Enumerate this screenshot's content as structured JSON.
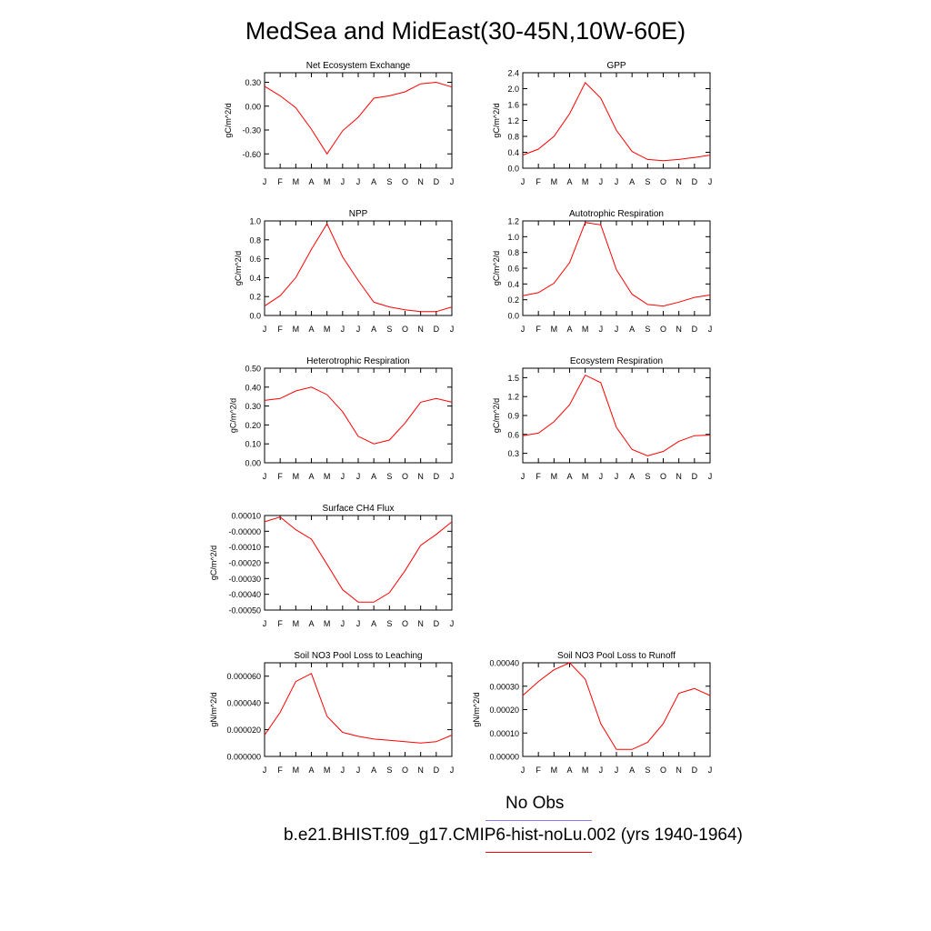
{
  "title": "MedSea and MidEast(30-45N,10W-60E)",
  "legend": {
    "obs_label": "No Obs",
    "obs_color": "#7f7fe6",
    "model_label": "b.e21.BHIST.f09_g17.CMIP6-hist-noLu.002 (yrs 1940-1964)",
    "model_color": "#ff0000"
  },
  "chart_data": [
    {
      "type": "line",
      "title": "Net Ecosystem Exchange",
      "ylabel": "gC/m^2/d",
      "categories": [
        "J",
        "F",
        "M",
        "A",
        "M",
        "J",
        "J",
        "A",
        "S",
        "O",
        "N",
        "D",
        "J"
      ],
      "ylim": [
        -0.78,
        0.42
      ],
      "yticks": [
        -0.6,
        -0.3,
        0.0,
        0.3
      ],
      "ytick_labels": [
        "-0.60",
        "-0.30",
        "0.00",
        "0.30"
      ],
      "series": [
        {
          "values": [
            0.25,
            0.13,
            -0.02,
            -0.29,
            -0.6,
            -0.31,
            -0.14,
            0.1,
            0.13,
            0.18,
            0.28,
            0.3,
            0.24
          ]
        }
      ]
    },
    {
      "type": "line",
      "title": "GPP",
      "ylabel": "gC/m^2/d",
      "categories": [
        "J",
        "F",
        "M",
        "A",
        "M",
        "J",
        "J",
        "A",
        "S",
        "O",
        "N",
        "D",
        "J"
      ],
      "ylim": [
        0.0,
        2.4
      ],
      "yticks": [
        0.0,
        0.4,
        0.8,
        1.2,
        1.6,
        2.0,
        2.4
      ],
      "ytick_labels": [
        "0.0",
        "0.4",
        "0.8",
        "1.2",
        "1.6",
        "2.0",
        "2.4"
      ],
      "series": [
        {
          "values": [
            0.33,
            0.48,
            0.8,
            1.37,
            2.15,
            1.76,
            0.95,
            0.42,
            0.22,
            0.19,
            0.22,
            0.27,
            0.33
          ]
        }
      ]
    },
    {
      "type": "line",
      "title": "NPP",
      "ylabel": "gC/m^2/d",
      "categories": [
        "J",
        "F",
        "M",
        "A",
        "M",
        "J",
        "J",
        "A",
        "S",
        "O",
        "N",
        "D",
        "J"
      ],
      "ylim": [
        0.0,
        1.0
      ],
      "yticks": [
        0.0,
        0.2,
        0.4,
        0.6,
        0.8,
        1.0
      ],
      "ytick_labels": [
        "0.0",
        "0.2",
        "0.4",
        "0.6",
        "0.8",
        "1.0"
      ],
      "series": [
        {
          "values": [
            0.1,
            0.21,
            0.4,
            0.7,
            0.97,
            0.62,
            0.37,
            0.14,
            0.09,
            0.06,
            0.04,
            0.04,
            0.09
          ]
        }
      ]
    },
    {
      "type": "line",
      "title": "Autotrophic Respiration",
      "ylabel": "gC/m^2/d",
      "categories": [
        "J",
        "F",
        "M",
        "A",
        "M",
        "J",
        "J",
        "A",
        "S",
        "O",
        "N",
        "D",
        "J"
      ],
      "ylim": [
        0.0,
        1.2
      ],
      "yticks": [
        0.0,
        0.2,
        0.4,
        0.6,
        0.8,
        1.0,
        1.2
      ],
      "ytick_labels": [
        "0.0",
        "0.2",
        "0.4",
        "0.6",
        "0.8",
        "1.0",
        "1.2"
      ],
      "series": [
        {
          "values": [
            0.25,
            0.29,
            0.41,
            0.67,
            1.18,
            1.15,
            0.58,
            0.27,
            0.14,
            0.12,
            0.17,
            0.23,
            0.26
          ]
        }
      ]
    },
    {
      "type": "line",
      "title": "Heterotrophic Respiration",
      "ylabel": "gC/m^2/d",
      "categories": [
        "J",
        "F",
        "M",
        "A",
        "M",
        "J",
        "J",
        "A",
        "S",
        "O",
        "N",
        "D",
        "J"
      ],
      "ylim": [
        0.0,
        0.5
      ],
      "yticks": [
        0.0,
        0.1,
        0.2,
        0.3,
        0.4,
        0.5
      ],
      "ytick_labels": [
        "0.00",
        "0.10",
        "0.20",
        "0.30",
        "0.40",
        "0.50"
      ],
      "series": [
        {
          "values": [
            0.33,
            0.34,
            0.38,
            0.4,
            0.36,
            0.27,
            0.14,
            0.1,
            0.12,
            0.21,
            0.32,
            0.34,
            0.32
          ]
        }
      ]
    },
    {
      "type": "line",
      "title": "Ecosystem Respiration",
      "ylabel": "gC/m^2/d",
      "categories": [
        "J",
        "F",
        "M",
        "A",
        "M",
        "J",
        "J",
        "A",
        "S",
        "O",
        "N",
        "D",
        "J"
      ],
      "ylim": [
        0.15,
        1.65
      ],
      "yticks": [
        0.3,
        0.6,
        0.9,
        1.2,
        1.5
      ],
      "ytick_labels": [
        "0.3",
        "0.6",
        "0.9",
        "1.2",
        "1.5"
      ],
      "series": [
        {
          "values": [
            0.58,
            0.62,
            0.8,
            1.07,
            1.54,
            1.42,
            0.71,
            0.36,
            0.26,
            0.33,
            0.49,
            0.58,
            0.59
          ]
        }
      ]
    },
    {
      "type": "line",
      "title": "Surface CH4 Flux",
      "ylabel": "gC/m^2/d",
      "categories": [
        "J",
        "F",
        "M",
        "A",
        "M",
        "J",
        "J",
        "A",
        "S",
        "O",
        "N",
        "D",
        "J"
      ],
      "ylim": [
        -0.0005,
        0.0001
      ],
      "yticks": [
        -0.0005,
        -0.0004,
        -0.0003,
        -0.0002,
        -0.0001,
        0.0,
        0.0001
      ],
      "ytick_labels": [
        "-0.00050",
        "-0.00040",
        "-0.00030",
        "-0.00020",
        "-0.00010",
        "-0.00000",
        "0.00010"
      ],
      "series": [
        {
          "values": [
            6e-05,
            9e-05,
            1e-05,
            -5e-05,
            -0.00021,
            -0.00037,
            -0.00045,
            -0.00045,
            -0.00039,
            -0.00025,
            -9e-05,
            -2e-05,
            6e-05
          ]
        }
      ]
    },
    {
      "type": "line",
      "title": "Soil NO3 Pool Loss to Leaching",
      "ylabel": "gN/m^2/d",
      "categories": [
        "J",
        "F",
        "M",
        "A",
        "M",
        "J",
        "J",
        "A",
        "S",
        "O",
        "N",
        "D",
        "J"
      ],
      "ylim": [
        0.0,
        7e-05
      ],
      "yticks": [
        0.0,
        2e-05,
        4e-05,
        6e-05
      ],
      "ytick_labels": [
        "0.000000",
        "0.000020",
        "0.000040",
        "0.000060"
      ],
      "series": [
        {
          "values": [
            1.6e-05,
            3.3e-05,
            5.6e-05,
            6.2e-05,
            3e-05,
            1.8e-05,
            1.5e-05,
            1.3e-05,
            1.2e-05,
            1.1e-05,
            1e-05,
            1.1e-05,
            1.6e-05
          ]
        }
      ]
    },
    {
      "type": "line",
      "title": "Soil NO3 Pool Loss to Runoff",
      "ylabel": "gN/m^2/d",
      "categories": [
        "J",
        "F",
        "M",
        "A",
        "M",
        "J",
        "J",
        "A",
        "S",
        "O",
        "N",
        "D",
        "J"
      ],
      "ylim": [
        0.0,
        0.0004
      ],
      "yticks": [
        0.0,
        0.0001,
        0.0002,
        0.0003,
        0.0004
      ],
      "ytick_labels": [
        "0.00000",
        "0.00010",
        "0.00020",
        "0.00030",
        "0.00040"
      ],
      "series": [
        {
          "values": [
            0.00026,
            0.00032,
            0.00037,
            0.0004,
            0.00033,
            0.00014,
            3e-05,
            3e-05,
            6e-05,
            0.00014,
            0.00027,
            0.00029,
            0.00026
          ]
        }
      ]
    }
  ]
}
